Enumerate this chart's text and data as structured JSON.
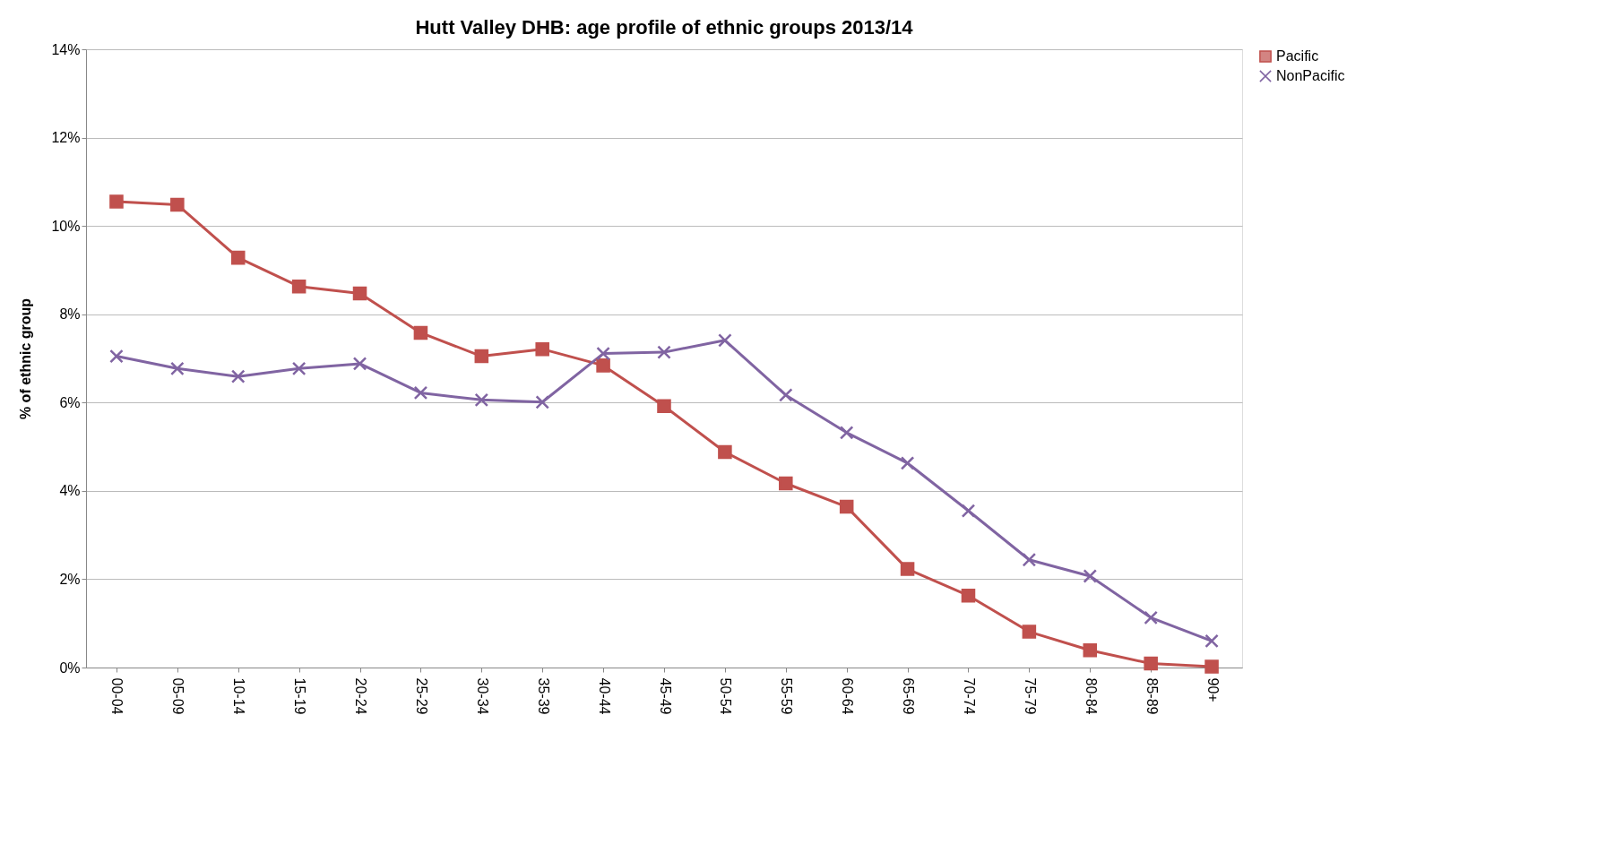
{
  "chart_data": {
    "type": "line",
    "title": "Hutt Valley DHB: age profile of ethnic groups  2013/14",
    "ylabel": "% of ethnic group",
    "categories": [
      "00-04",
      "05-09",
      "10-14",
      "15-19",
      "20-24",
      "25-29",
      "30-34",
      "35-39",
      "40-44",
      "45-49",
      "50-54",
      "55-59",
      "60-64",
      "65-69",
      "70-74",
      "75-79",
      "80-84",
      "85-89",
      "90+"
    ],
    "series": [
      {
        "name": "Pacific",
        "color": "#c0504d",
        "marker": "square",
        "values": [
          10.55,
          10.48,
          9.28,
          8.63,
          8.47,
          7.58,
          7.05,
          7.21,
          6.84,
          5.92,
          4.88,
          4.17,
          3.64,
          2.23,
          1.63,
          0.81,
          0.39,
          0.09,
          0.02
        ]
      },
      {
        "name": "NonPacific",
        "color": "#8064a2",
        "marker": "cross",
        "values": [
          7.05,
          6.77,
          6.59,
          6.77,
          6.88,
          6.22,
          6.06,
          6.01,
          7.11,
          7.14,
          7.41,
          6.17,
          5.32,
          4.63,
          3.55,
          2.44,
          2.07,
          1.13,
          0.6
        ]
      }
    ],
    "ylim": [
      0,
      14
    ],
    "yticks": [
      {
        "value": 0,
        "label": "0%"
      },
      {
        "value": 2,
        "label": "2%"
      },
      {
        "value": 4,
        "label": "4%"
      },
      {
        "value": 6,
        "label": "6%"
      },
      {
        "value": 8,
        "label": "8%"
      },
      {
        "value": 10,
        "label": "10%"
      },
      {
        "value": 12,
        "label": "12%"
      },
      {
        "value": 14,
        "label": "14%"
      }
    ],
    "grid": "y",
    "legend": "right",
    "line_style": "solid"
  }
}
